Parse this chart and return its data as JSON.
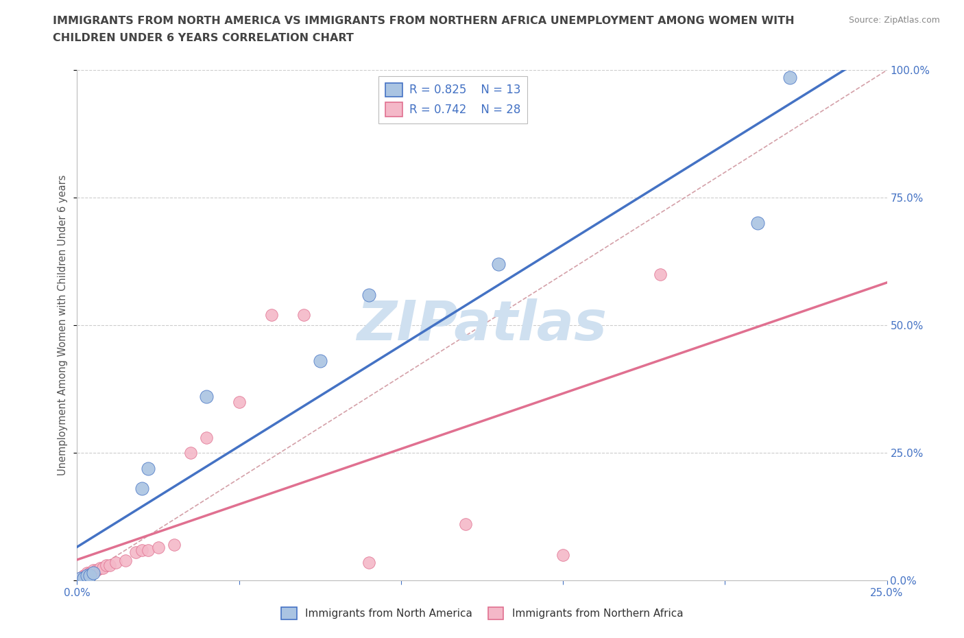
{
  "title_line1": "IMMIGRANTS FROM NORTH AMERICA VS IMMIGRANTS FROM NORTHERN AFRICA UNEMPLOYMENT AMONG WOMEN WITH",
  "title_line2": "CHILDREN UNDER 6 YEARS CORRELATION CHART",
  "source_text": "Source: ZipAtlas.com",
  "ylabel": "Unemployment Among Women with Children Under 6 years",
  "north_america": {
    "label": "Immigrants from North America",
    "color": "#aac4e2",
    "line_color": "#4472c4",
    "R": 0.825,
    "N": 13,
    "x": [
      0.001,
      0.002,
      0.003,
      0.004,
      0.005,
      0.02,
      0.022,
      0.04,
      0.075,
      0.09,
      0.13,
      0.21,
      0.22
    ],
    "y": [
      0.005,
      0.005,
      0.01,
      0.01,
      0.015,
      0.18,
      0.22,
      0.36,
      0.43,
      0.56,
      0.62,
      0.7,
      0.985
    ]
  },
  "northern_africa": {
    "label": "Immigrants from Northern Africa",
    "color": "#f4b8c8",
    "line_color": "#e07090",
    "R": 0.742,
    "N": 28,
    "x": [
      0.001,
      0.002,
      0.002,
      0.003,
      0.003,
      0.004,
      0.005,
      0.006,
      0.007,
      0.008,
      0.009,
      0.01,
      0.012,
      0.015,
      0.018,
      0.02,
      0.022,
      0.025,
      0.03,
      0.035,
      0.04,
      0.05,
      0.06,
      0.07,
      0.09,
      0.12,
      0.15,
      0.18
    ],
    "y": [
      0.005,
      0.005,
      0.01,
      0.01,
      0.015,
      0.015,
      0.02,
      0.02,
      0.025,
      0.025,
      0.03,
      0.03,
      0.035,
      0.04,
      0.055,
      0.06,
      0.06,
      0.065,
      0.07,
      0.25,
      0.28,
      0.35,
      0.52,
      0.52,
      0.035,
      0.11,
      0.05,
      0.6
    ]
  },
  "xlim": [
    0.0,
    0.25
  ],
  "ylim": [
    0.0,
    1.0
  ],
  "x_ticks": [
    0.0,
    0.05,
    0.1,
    0.15,
    0.2,
    0.25
  ],
  "y_ticks": [
    0.0,
    0.25,
    0.5,
    0.75,
    1.0
  ],
  "background_color": "#ffffff",
  "grid_color": "#cccccc",
  "watermark": "ZIPatlas",
  "watermark_color": "#cfe0f0",
  "title_color": "#444444",
  "axis_color": "#4472c4",
  "source_color": "#888888",
  "ref_line_color": "#d4a0a8"
}
